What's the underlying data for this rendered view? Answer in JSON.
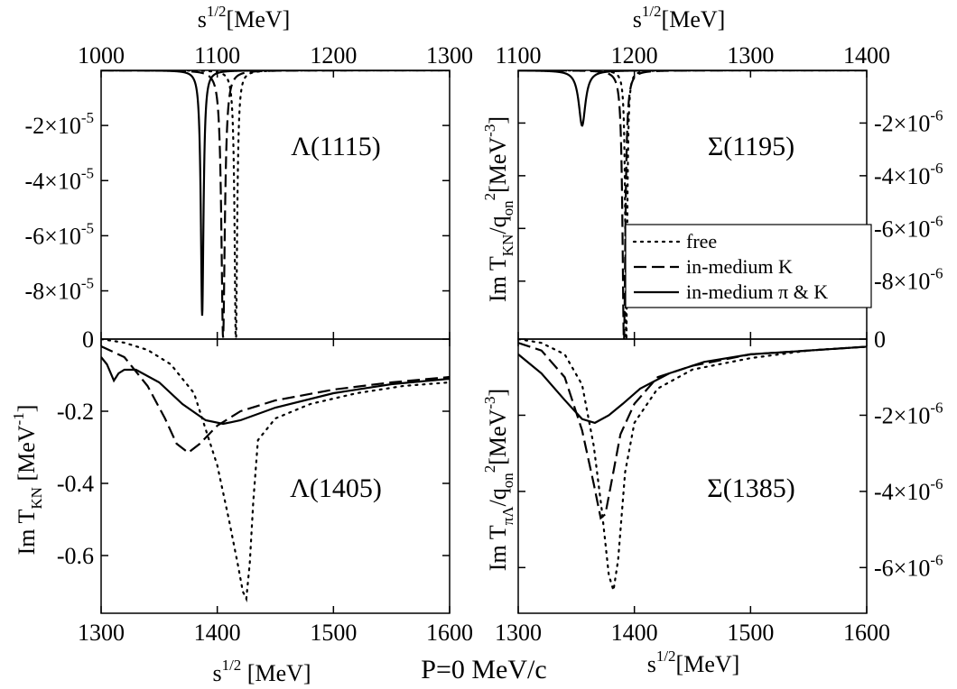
{
  "figure": {
    "caption": "P=0 MeV/c"
  },
  "axes": {
    "top_left_xlabel": {
      "base": "s",
      "sup": "1/2",
      "unit": "[MeV]"
    },
    "top_right_xlabel": {
      "base": "s",
      "sup": "1/2",
      "unit": "[MeV]"
    },
    "bottom_left_xlabel": {
      "base": "s",
      "sup": "1/2",
      "unit": " [MeV]"
    },
    "bottom_right_xlabel": {
      "base": "s",
      "sup": "1/2",
      "unit": "[MeV]"
    },
    "left_ylabel": {
      "pre": "Im T",
      "sub": "KN",
      "post": " [MeV",
      "sup": "-1",
      "close": "]"
    },
    "right_upper_ylabel": {
      "pre": "Im T",
      "sub": "KN",
      "mid": "/q",
      "sub2": "on",
      "sup2": "2",
      "post": "[MeV",
      "sup": "-3",
      "close": "]"
    },
    "right_lower_ylabel": {
      "pre": "Im T",
      "sub": "πΛ",
      "mid": "/q",
      "sub2": "on",
      "sup2": "2",
      "post": "[MeV",
      "sup": "-3",
      "close": "]"
    }
  },
  "legend": {
    "items": [
      "free",
      "in-medium K",
      "in-medium π & K"
    ]
  },
  "chart_data": [
    {
      "id": "lambda1115",
      "type": "line",
      "title": "Λ(1115)",
      "xlabel": "s^1/2 [MeV]",
      "xlim": [
        1000,
        1300
      ],
      "xticks": [
        "1000",
        "1100",
        "1200",
        "1300"
      ],
      "ylim": [
        -9.75e-05,
        0
      ],
      "yticks": [
        {
          "v": -2e-05,
          "m": "-2",
          "e": "-5"
        },
        {
          "v": -4e-05,
          "m": "-4",
          "e": "-5"
        },
        {
          "v": -6e-05,
          "m": "-6",
          "e": "-5"
        },
        {
          "v": -8e-05,
          "m": "-8",
          "e": "-5"
        }
      ],
      "series": [
        {
          "name": "free",
          "dash": "dotted",
          "center": 1116,
          "hwhm": 1.3,
          "depth": 0.0001
        },
        {
          "name": "in-medium K",
          "dash": "dashed",
          "center": 1105,
          "hwhm": 1.8,
          "depth": 9.7e-05
        },
        {
          "name": "in-medium π & K",
          "dash": "solid",
          "center": 1087,
          "hwhm": 1.4,
          "depth": 8.9e-05
        }
      ]
    },
    {
      "id": "sigma1195",
      "type": "line",
      "title": "Σ(1195)",
      "xlabel": "s^1/2 [MeV]",
      "xlim": [
        1100,
        1400
      ],
      "xticks": [
        "1100",
        "1200",
        "1300",
        "1400"
      ],
      "ylim": [
        -1.02e-05,
        0
      ],
      "yticks": [
        {
          "v": -2e-06,
          "m": "-2",
          "e": "-6"
        },
        {
          "v": -4e-06,
          "m": "-4",
          "e": "-6"
        },
        {
          "v": -6e-06,
          "m": "-6",
          "e": "-6"
        },
        {
          "v": -8e-06,
          "m": "-8",
          "e": "-6"
        }
      ],
      "series": [
        {
          "name": "free",
          "dash": "dotted",
          "center": 1193,
          "hwhm": 1.0,
          "depth": 1.05e-05
        },
        {
          "name": "in-medium K",
          "dash": "dashed",
          "center": 1191,
          "hwhm": 1.5,
          "depth": 1.03e-05
        },
        {
          "name": "in-medium π & K",
          "dash": "solid",
          "center": 1155,
          "hwhm": 3.5,
          "depth": 2.1e-06
        }
      ]
    },
    {
      "id": "lambda1405",
      "type": "line",
      "title": "Λ(1405)",
      "xlabel": "s^1/2 [MeV]",
      "xlim": [
        1300,
        1600
      ],
      "xticks": [
        "1300",
        "1400",
        "1500",
        "1600"
      ],
      "ylim": [
        -0.76,
        0
      ],
      "yticks": [
        {
          "v": 0,
          "label": "0"
        },
        {
          "v": -0.2,
          "label": "-0.2"
        },
        {
          "v": -0.4,
          "label": "-0.4"
        },
        {
          "v": -0.6,
          "label": "-0.6"
        }
      ],
      "series": [
        {
          "name": "free",
          "dash": "dotted",
          "x": [
            1300,
            1320,
            1340,
            1360,
            1380,
            1400,
            1410,
            1418,
            1422,
            1425,
            1428,
            1431,
            1435,
            1450,
            1480,
            1520,
            1560,
            1600
          ],
          "y": [
            0,
            -0.01,
            -0.03,
            -0.07,
            -0.15,
            -0.35,
            -0.5,
            -0.63,
            -0.7,
            -0.72,
            -0.62,
            -0.45,
            -0.28,
            -0.22,
            -0.18,
            -0.15,
            -0.13,
            -0.12
          ]
        },
        {
          "name": "in-medium K",
          "dash": "dashed",
          "x": [
            1300,
            1320,
            1340,
            1355,
            1365,
            1375,
            1385,
            1400,
            1420,
            1450,
            1500,
            1550,
            1600
          ],
          "y": [
            -0.02,
            -0.05,
            -0.13,
            -0.22,
            -0.29,
            -0.315,
            -0.29,
            -0.24,
            -0.2,
            -0.17,
            -0.14,
            -0.12,
            -0.105
          ]
        },
        {
          "name": "in-medium π & K",
          "dash": "solid",
          "x": [
            1300,
            1305,
            1311,
            1315,
            1320,
            1330,
            1350,
            1370,
            1390,
            1405,
            1420,
            1450,
            1500,
            1550,
            1600
          ],
          "y": [
            -0.05,
            -0.07,
            -0.115,
            -0.095,
            -0.085,
            -0.085,
            -0.12,
            -0.18,
            -0.225,
            -0.235,
            -0.225,
            -0.19,
            -0.15,
            -0.125,
            -0.11
          ]
        }
      ]
    },
    {
      "id": "sigma1385",
      "type": "line",
      "title": "Σ(1385)",
      "xlabel": "s^1/2 [MeV]",
      "xlim": [
        1300,
        1600
      ],
      "xticks": [
        "1300",
        "1400",
        "1500",
        "1600"
      ],
      "ylim": [
        -7.2e-06,
        0
      ],
      "yticks": [
        {
          "v": 0,
          "label": "0"
        },
        {
          "v": -2e-06,
          "m": "-2",
          "e": "-6"
        },
        {
          "v": -4e-06,
          "m": "-4",
          "e": "-6"
        },
        {
          "v": -6e-06,
          "m": "-6",
          "e": "-6"
        }
      ],
      "series": [
        {
          "name": "free",
          "dash": "dotted",
          "x": [
            1300,
            1320,
            1340,
            1355,
            1365,
            1372,
            1378,
            1382,
            1386,
            1392,
            1400,
            1420,
            1450,
            1500,
            1550,
            1600
          ],
          "y": [
            0,
            -1e-07,
            -4e-07,
            -1.2e-06,
            -2.8e-06,
            -4.5e-06,
            -6.2e-06,
            -6.6e-06,
            -5.8e-06,
            -3.5e-06,
            -2.2e-06,
            -1.3e-06,
            -8e-07,
            -5e-07,
            -3e-07,
            -2e-07
          ]
        },
        {
          "name": "in-medium K",
          "dash": "dashed",
          "x": [
            1300,
            1320,
            1340,
            1355,
            1365,
            1371,
            1375,
            1380,
            1388,
            1400,
            1420,
            1450,
            1500,
            1550,
            1600
          ],
          "y": [
            -1e-07,
            -3e-07,
            -1e-06,
            -2.4e-06,
            -3.8e-06,
            -4.7e-06,
            -4.6e-06,
            -3.8e-06,
            -2.5e-06,
            -1.7e-06,
            -1e-06,
            -7e-07,
            -4e-07,
            -3e-07,
            -2e-07
          ]
        },
        {
          "name": "in-medium π & K",
          "dash": "solid",
          "x": [
            1300,
            1320,
            1340,
            1355,
            1366,
            1378,
            1390,
            1405,
            1430,
            1460,
            1500,
            1550,
            1600
          ],
          "y": [
            -4e-07,
            -9e-07,
            -1.6e-06,
            -2.1e-06,
            -2.2e-06,
            -2e-06,
            -1.7e-06,
            -1.3e-06,
            -9e-07,
            -6e-07,
            -4e-07,
            -3e-07,
            -2e-07
          ]
        }
      ]
    }
  ]
}
